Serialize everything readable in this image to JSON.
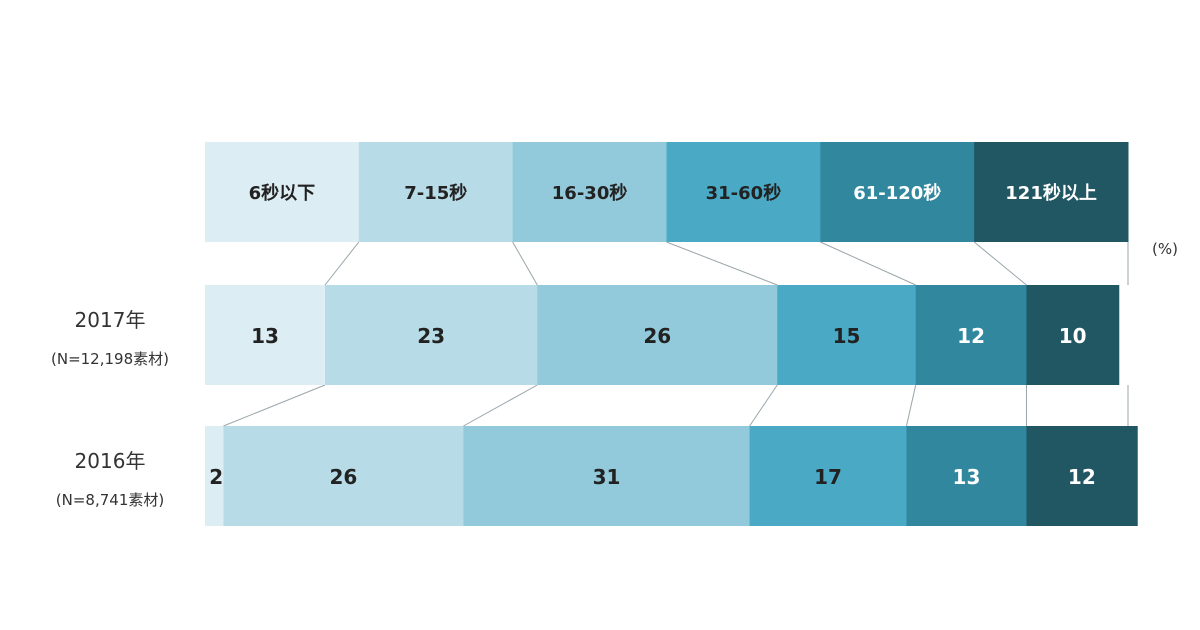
{
  "chart_data": {
    "type": "bar",
    "orientation": "horizontal",
    "stacked": true,
    "categories": [
      "6秒以下",
      "7-15秒",
      "16-30秒",
      "31-60秒",
      "61-120秒",
      "121秒以上"
    ],
    "colors": [
      "#dcedf3",
      "#b7dce7",
      "#93cadb",
      "#4aaac6",
      "#30879e",
      "#215663"
    ],
    "label_colors": [
      "#222222",
      "#222222",
      "#222222",
      "#222222",
      "#ffffff",
      "#ffffff"
    ],
    "unit": "(%)",
    "series": [
      {
        "name": "2017年",
        "subtitle": "(N=12,198素材)",
        "values": [
          13,
          23,
          26,
          15,
          12,
          10
        ]
      },
      {
        "name": "2016年",
        "subtitle": "(N=8,741素材)",
        "values": [
          2,
          26,
          31,
          17,
          13,
          12
        ]
      }
    ],
    "xlim": [
      0,
      100
    ],
    "grid": false,
    "legend": "top"
  }
}
